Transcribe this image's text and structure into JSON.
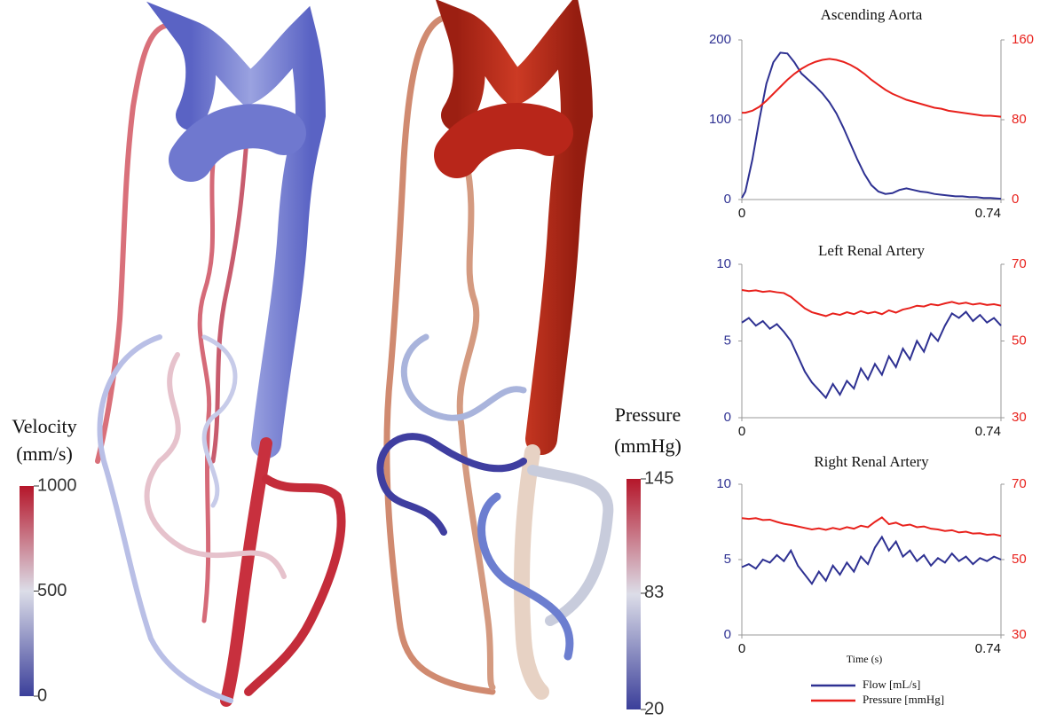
{
  "colorbars": [
    {
      "title_lines": [
        "Velocity",
        "(mm/s)"
      ],
      "range": [
        0,
        1000
      ],
      "ticks": [
        0,
        500,
        1000
      ],
      "colors": [
        "#3b3f9a",
        "#dcdde8",
        "#b5162a"
      ]
    },
    {
      "title_lines": [
        "Pressure",
        "(mmHg)"
      ],
      "range": [
        20,
        145
      ],
      "ticks": [
        20,
        83,
        145
      ],
      "colors": [
        "#3b3f9a",
        "#dcdde8",
        "#b5162a"
      ]
    }
  ],
  "legend": [
    {
      "name": "Flow [mL/s]",
      "color": "#2e3192"
    },
    {
      "name": "Pressure [mmHg]",
      "color": "#e8211c"
    }
  ],
  "chart_data": [
    {
      "type": "line",
      "title": "Ascending Aorta",
      "x": [
        0,
        0.01,
        0.03,
        0.05,
        0.07,
        0.09,
        0.11,
        0.13,
        0.15,
        0.17,
        0.19,
        0.21,
        0.23,
        0.25,
        0.27,
        0.29,
        0.31,
        0.33,
        0.35,
        0.37,
        0.39,
        0.41,
        0.43,
        0.45,
        0.47,
        0.49,
        0.51,
        0.53,
        0.55,
        0.57,
        0.59,
        0.61,
        0.63,
        0.65,
        0.67,
        0.69,
        0.71,
        0.74
      ],
      "xlim": [
        0,
        0.74
      ],
      "xticks": [
        0,
        0.74
      ],
      "ylim": [
        0,
        200
      ],
      "yticks": [
        0,
        100,
        200
      ],
      "y2lim": [
        0,
        160
      ],
      "y2ticks": [
        0,
        80,
        160
      ],
      "series": [
        {
          "color": "#2e3192",
          "values": [
            2,
            10,
            50,
            100,
            145,
            172,
            184,
            183,
            172,
            158,
            150,
            142,
            133,
            122,
            108,
            90,
            70,
            50,
            32,
            18,
            10,
            7,
            8,
            12,
            14,
            12,
            10,
            9,
            7,
            6,
            5,
            4,
            4,
            3,
            3,
            2,
            2,
            1
          ]
        },
        {
          "color": "#e8211c",
          "axis": "y2",
          "values": [
            87,
            87,
            89,
            93,
            99,
            106,
            113,
            120,
            126,
            131,
            135,
            138,
            140,
            141,
            140,
            138,
            135,
            131,
            126,
            120,
            115,
            110,
            106,
            103,
            100,
            98,
            96,
            94,
            92,
            91,
            89,
            88,
            87,
            86,
            85,
            84,
            84,
            83
          ]
        }
      ]
    },
    {
      "type": "line",
      "title": "Left Renal Artery",
      "x": [
        0,
        0.02,
        0.04,
        0.06,
        0.08,
        0.1,
        0.12,
        0.14,
        0.16,
        0.18,
        0.2,
        0.22,
        0.24,
        0.26,
        0.28,
        0.3,
        0.32,
        0.34,
        0.36,
        0.38,
        0.4,
        0.42,
        0.44,
        0.46,
        0.48,
        0.5,
        0.52,
        0.54,
        0.56,
        0.58,
        0.6,
        0.62,
        0.64,
        0.66,
        0.68,
        0.7,
        0.72,
        0.74
      ],
      "xlim": [
        0,
        0.74
      ],
      "xticks": [
        0,
        0.74
      ],
      "ylim": [
        0,
        10
      ],
      "yticks": [
        0,
        5,
        10
      ],
      "y2lim": [
        30,
        70
      ],
      "y2ticks": [
        30,
        50,
        70
      ],
      "series": [
        {
          "color": "#2e3192",
          "values": [
            6.2,
            6.5,
            6.0,
            6.3,
            5.8,
            6.1,
            5.6,
            5.0,
            4.0,
            3.0,
            2.3,
            1.8,
            1.3,
            2.2,
            1.5,
            2.4,
            1.9,
            3.2,
            2.5,
            3.5,
            2.8,
            4.0,
            3.3,
            4.5,
            3.8,
            5.0,
            4.3,
            5.5,
            5.0,
            6.0,
            6.8,
            6.5,
            6.9,
            6.3,
            6.7,
            6.2,
            6.5,
            6.0
          ]
        },
        {
          "color": "#e8211c",
          "axis": "y2",
          "values": [
            63.3,
            63.0,
            63.2,
            62.8,
            63.0,
            62.7,
            62.5,
            61.5,
            60.0,
            58.5,
            57.5,
            57.0,
            56.5,
            57.2,
            56.8,
            57.5,
            57.0,
            57.8,
            57.2,
            57.6,
            57.0,
            58.0,
            57.4,
            58.2,
            58.6,
            59.2,
            59.0,
            59.6,
            59.3,
            59.8,
            60.2,
            59.7,
            60.0,
            59.5,
            59.8,
            59.4,
            59.6,
            59.2
          ]
        }
      ]
    },
    {
      "type": "line",
      "title": "Right Renal Artery",
      "xlabel": "Time (s)",
      "x": [
        0,
        0.02,
        0.04,
        0.06,
        0.08,
        0.1,
        0.12,
        0.14,
        0.16,
        0.18,
        0.2,
        0.22,
        0.24,
        0.26,
        0.28,
        0.3,
        0.32,
        0.34,
        0.36,
        0.38,
        0.4,
        0.42,
        0.44,
        0.46,
        0.48,
        0.5,
        0.52,
        0.54,
        0.56,
        0.58,
        0.6,
        0.62,
        0.64,
        0.66,
        0.68,
        0.7,
        0.72,
        0.74
      ],
      "xlim": [
        0,
        0.74
      ],
      "xticks": [
        0,
        0.74
      ],
      "ylim": [
        0,
        10
      ],
      "yticks": [
        0,
        5,
        10
      ],
      "y2lim": [
        30,
        70
      ],
      "y2ticks": [
        30,
        50,
        70
      ],
      "series": [
        {
          "color": "#2e3192",
          "values": [
            4.5,
            4.7,
            4.4,
            5.0,
            4.8,
            5.3,
            4.9,
            5.6,
            4.6,
            4.0,
            3.4,
            4.2,
            3.6,
            4.6,
            4.0,
            4.8,
            4.2,
            5.2,
            4.7,
            5.8,
            6.5,
            5.6,
            6.2,
            5.2,
            5.6,
            4.9,
            5.3,
            4.6,
            5.1,
            4.8,
            5.4,
            4.9,
            5.2,
            4.7,
            5.1,
            4.9,
            5.2,
            5.0
          ]
        },
        {
          "color": "#e8211c",
          "axis": "y2",
          "values": [
            61.0,
            60.8,
            61.0,
            60.5,
            60.6,
            60.0,
            59.5,
            59.2,
            58.8,
            58.4,
            58.0,
            58.3,
            57.9,
            58.4,
            58.0,
            58.6,
            58.2,
            59.0,
            58.6,
            60.0,
            61.2,
            59.4,
            59.8,
            59.0,
            59.3,
            58.6,
            58.8,
            58.2,
            58.0,
            57.6,
            57.8,
            57.2,
            57.4,
            56.9,
            57.0,
            56.6,
            56.7,
            56.3
          ]
        }
      ]
    }
  ]
}
